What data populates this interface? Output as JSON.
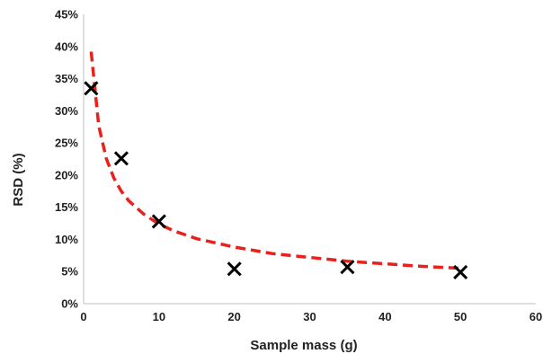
{
  "chart_data": {
    "type": "scatter",
    "title": "",
    "xlabel": "Sample mass (g)",
    "ylabel": "RSD (%)",
    "xlim": [
      0,
      60
    ],
    "ylim": [
      0,
      45
    ],
    "x_ticks": [
      "0",
      "10",
      "20",
      "30",
      "40",
      "50",
      "60"
    ],
    "y_ticks": [
      "0%",
      "5%",
      "10%",
      "15%",
      "20%",
      "25%",
      "30%",
      "35%",
      "40%",
      "45%"
    ],
    "grid": false,
    "legend": "none",
    "series": [
      {
        "marker": "x",
        "color": "#000000",
        "x": [
          1,
          5,
          10,
          20,
          35,
          50
        ],
        "y": [
          33.5,
          22.6,
          12.8,
          5.4,
          5.7,
          4.9
        ]
      }
    ],
    "trendline": {
      "style": "dashed",
      "color": "#e8211d",
      "x": [
        1,
        2,
        3,
        4,
        5,
        6,
        8,
        10,
        12,
        15,
        20,
        25,
        30,
        35,
        40,
        45,
        50
      ],
      "y": [
        39.2,
        27.7,
        22.6,
        19.6,
        17.5,
        16.0,
        13.9,
        12.4,
        11.3,
        10.1,
        8.8,
        7.8,
        7.2,
        6.6,
        6.2,
        5.8,
        5.5
      ]
    }
  }
}
